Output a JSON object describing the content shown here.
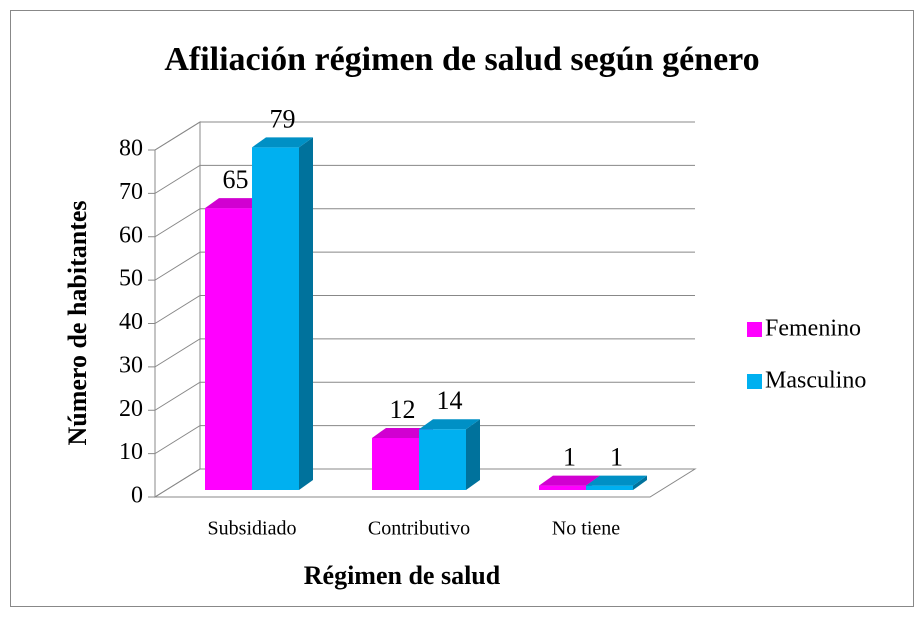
{
  "chart_data": {
    "type": "bar3d",
    "title": "Afiliación régimen de salud según género",
    "x_label": "Régimen de salud",
    "y_label": "Número de habitantes",
    "categories": [
      "Subsidiado",
      "Contributivo",
      "No tiene"
    ],
    "series": [
      {
        "name": "Femenino",
        "color": "#ff00ff",
        "values": [
          65,
          12,
          1
        ]
      },
      {
        "name": "Masculino",
        "color": "#00b0f0",
        "values": [
          79,
          14,
          1
        ]
      }
    ],
    "ylim": [
      0,
      80
    ],
    "yticks": [
      0,
      10,
      20,
      30,
      40,
      50,
      60,
      70,
      80
    ],
    "grid": true,
    "legend": "right"
  }
}
